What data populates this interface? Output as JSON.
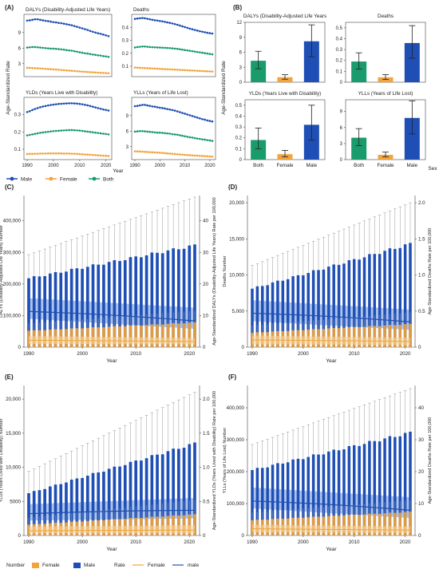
{
  "chart_data": [
    {
      "panel": "(A)",
      "type": "line",
      "title": "DALYs (Disability-Adjusted Life Years)",
      "x": [
        1990,
        1991,
        1992,
        1993,
        1994,
        1995,
        1996,
        1997,
        1998,
        1999,
        2000,
        2001,
        2002,
        2003,
        2004,
        2005,
        2006,
        2007,
        2008,
        2009,
        2010,
        2011,
        2012,
        2013,
        2014,
        2015,
        2016,
        2017,
        2018,
        2019,
        2020,
        2021
      ],
      "yticks": [
        "3",
        "6",
        "9"
      ],
      "ylim": [
        0.5,
        12.5
      ],
      "series": [
        {
          "name": "Male",
          "color": "#1f4fb5",
          "values": [
            11.3,
            11.35,
            11.45,
            11.55,
            11.55,
            11.45,
            11.35,
            11.25,
            11.2,
            11.1,
            11.0,
            10.95,
            10.85,
            10.8,
            10.7,
            10.6,
            10.5,
            10.4,
            10.25,
            10.1,
            9.95,
            9.8,
            9.65,
            9.5,
            9.3,
            9.15,
            9.0,
            8.85,
            8.75,
            8.6,
            8.45,
            8.3
          ]
        },
        {
          "name": "Female",
          "color": "#f2a33a",
          "values": [
            2.2,
            2.18,
            2.15,
            2.12,
            2.1,
            2.07,
            2.04,
            2.0,
            1.97,
            1.93,
            1.9,
            1.86,
            1.82,
            1.78,
            1.74,
            1.7,
            1.66,
            1.62,
            1.58,
            1.54,
            1.5,
            1.46,
            1.43,
            1.4,
            1.36,
            1.33,
            1.3,
            1.27,
            1.24,
            1.21,
            1.18,
            1.15
          ]
        },
        {
          "name": "Both",
          "color": "#1a9b6c",
          "values": [
            6.1,
            6.15,
            6.2,
            6.2,
            6.15,
            6.1,
            6.05,
            6.0,
            5.95,
            5.9,
            5.9,
            5.85,
            5.8,
            5.75,
            5.7,
            5.6,
            5.55,
            5.5,
            5.4,
            5.3,
            5.2,
            5.1,
            5.0,
            4.95,
            4.85,
            4.75,
            4.7,
            4.6,
            4.55,
            4.45,
            4.4,
            4.3
          ]
        }
      ]
    },
    {
      "panel": "",
      "type": "line",
      "title": "Deaths",
      "x": [
        1990,
        1991,
        1992,
        1993,
        1994,
        1995,
        1996,
        1997,
        1998,
        1999,
        2000,
        2001,
        2002,
        2003,
        2004,
        2005,
        2006,
        2007,
        2008,
        2009,
        2010,
        2011,
        2012,
        2013,
        2014,
        2015,
        2016,
        2017,
        2018,
        2019,
        2020,
        2021
      ],
      "yticks": [
        "0.1",
        "0.2",
        "0.3",
        "0.4"
      ],
      "ylim": [
        0.02,
        0.5
      ],
      "series": [
        {
          "name": "Male",
          "color": "#1f4fb5",
          "values": [
            0.465,
            0.468,
            0.47,
            0.472,
            0.47,
            0.466,
            0.462,
            0.458,
            0.455,
            0.452,
            0.449,
            0.446,
            0.442,
            0.438,
            0.434,
            0.43,
            0.425,
            0.42,
            0.414,
            0.408,
            0.402,
            0.396,
            0.39,
            0.385,
            0.38,
            0.375,
            0.37,
            0.366,
            0.362,
            0.358,
            0.355,
            0.352
          ]
        },
        {
          "name": "Female",
          "color": "#f2a33a",
          "values": [
            0.09,
            0.089,
            0.088,
            0.087,
            0.086,
            0.085,
            0.084,
            0.083,
            0.082,
            0.081,
            0.08,
            0.079,
            0.078,
            0.077,
            0.076,
            0.075,
            0.074,
            0.073,
            0.072,
            0.071,
            0.07,
            0.069,
            0.068,
            0.067,
            0.066,
            0.065,
            0.064,
            0.063,
            0.062,
            0.061,
            0.06,
            0.059
          ]
        },
        {
          "name": "Both",
          "color": "#1a9b6c",
          "values": [
            0.245,
            0.248,
            0.25,
            0.252,
            0.252,
            0.25,
            0.248,
            0.247,
            0.246,
            0.245,
            0.244,
            0.243,
            0.242,
            0.241,
            0.24,
            0.238,
            0.236,
            0.234,
            0.231,
            0.228,
            0.225,
            0.222,
            0.219,
            0.216,
            0.213,
            0.21,
            0.207,
            0.204,
            0.201,
            0.198,
            0.195,
            0.192
          ]
        }
      ]
    },
    {
      "panel": "",
      "type": "line",
      "title": "YLDs (Years Live with Disability)",
      "x": [
        1990,
        1991,
        1992,
        1993,
        1994,
        1995,
        1996,
        1997,
        1998,
        1999,
        2000,
        2001,
        2002,
        2003,
        2004,
        2005,
        2006,
        2007,
        2008,
        2009,
        2010,
        2011,
        2012,
        2013,
        2014,
        2015,
        2016,
        2017,
        2018,
        2019,
        2020,
        2021
      ],
      "yticks": [
        "0.1",
        "0.2",
        "0.3"
      ],
      "ylim": [
        0.04,
        0.4
      ],
      "series": [
        {
          "name": "Male",
          "color": "#1f4fb5",
          "values": [
            0.315,
            0.32,
            0.327,
            0.333,
            0.338,
            0.343,
            0.347,
            0.35,
            0.353,
            0.356,
            0.358,
            0.36,
            0.362,
            0.363,
            0.364,
            0.365,
            0.366,
            0.366,
            0.365,
            0.364,
            0.362,
            0.36,
            0.357,
            0.354,
            0.35,
            0.346,
            0.342,
            0.338,
            0.334,
            0.33,
            0.327,
            0.324
          ]
        },
        {
          "name": "Female",
          "color": "#f2a33a",
          "values": [
            0.072,
            0.073,
            0.073,
            0.074,
            0.074,
            0.075,
            0.075,
            0.075,
            0.076,
            0.076,
            0.076,
            0.076,
            0.076,
            0.076,
            0.075,
            0.075,
            0.075,
            0.074,
            0.074,
            0.073,
            0.072,
            0.071,
            0.07,
            0.069,
            0.068,
            0.067,
            0.066,
            0.065,
            0.064,
            0.063,
            0.062,
            0.061
          ]
        },
        {
          "name": "Both",
          "color": "#1a9b6c",
          "values": [
            0.18,
            0.183,
            0.186,
            0.189,
            0.192,
            0.195,
            0.197,
            0.199,
            0.201,
            0.203,
            0.205,
            0.206,
            0.207,
            0.208,
            0.209,
            0.21,
            0.211,
            0.211,
            0.21,
            0.209,
            0.208,
            0.206,
            0.204,
            0.202,
            0.2,
            0.198,
            0.196,
            0.194,
            0.192,
            0.19,
            0.188,
            0.186
          ]
        }
      ]
    },
    {
      "panel": "",
      "type": "line",
      "title": "YLLs (Years of Life Lost)",
      "x": [
        1990,
        1991,
        1992,
        1993,
        1994,
        1995,
        1996,
        1997,
        1998,
        1999,
        2000,
        2001,
        2002,
        2003,
        2004,
        2005,
        2006,
        2007,
        2008,
        2009,
        2010,
        2011,
        2012,
        2013,
        2014,
        2015,
        2016,
        2017,
        2018,
        2019,
        2020,
        2021
      ],
      "yticks": [
        "3",
        "6",
        "9"
      ],
      "ylim": [
        0.5,
        12.5
      ],
      "series": [
        {
          "name": "Male",
          "color": "#1f4fb5",
          "values": [
            10.8,
            10.85,
            10.95,
            11.05,
            11.05,
            10.95,
            10.85,
            10.75,
            10.7,
            10.6,
            10.5,
            10.45,
            10.35,
            10.25,
            10.15,
            10.05,
            9.95,
            9.8,
            9.65,
            9.5,
            9.35,
            9.2,
            9.05,
            8.9,
            8.75,
            8.6,
            8.45,
            8.3,
            8.2,
            8.05,
            7.95,
            7.85
          ]
        },
        {
          "name": "Female",
          "color": "#f2a33a",
          "values": [
            2.1,
            2.08,
            2.06,
            2.03,
            2.0,
            1.97,
            1.94,
            1.91,
            1.88,
            1.85,
            1.82,
            1.78,
            1.74,
            1.7,
            1.66,
            1.62,
            1.58,
            1.54,
            1.5,
            1.46,
            1.42,
            1.38,
            1.35,
            1.32,
            1.29,
            1.26,
            1.23,
            1.2,
            1.17,
            1.14,
            1.11,
            1.08
          ]
        },
        {
          "name": "Both",
          "color": "#1a9b6c",
          "values": [
            5.9,
            5.95,
            6.0,
            6.0,
            5.95,
            5.9,
            5.85,
            5.8,
            5.75,
            5.7,
            5.7,
            5.65,
            5.6,
            5.55,
            5.5,
            5.4,
            5.35,
            5.3,
            5.2,
            5.1,
            5.0,
            4.9,
            4.8,
            4.75,
            4.65,
            4.55,
            4.5,
            4.4,
            4.35,
            4.25,
            4.2,
            4.1
          ]
        }
      ]
    },
    {
      "panel": "(B)",
      "type": "bar",
      "title": "DALYs (Disability-Adjusted Life Years",
      "categories": [
        "Both",
        "Female",
        "Male"
      ],
      "colors": [
        "#1a9b6c",
        "#f2a33a",
        "#1f4fb5"
      ],
      "values": [
        4.3,
        1.0,
        8.2
      ],
      "lower": [
        2.7,
        0.6,
        5.1
      ],
      "upper": [
        6.2,
        1.5,
        11.5
      ],
      "yticks": [
        "0",
        "3",
        "6",
        "9",
        "12"
      ],
      "ylim": [
        0,
        12
      ]
    },
    {
      "panel": "",
      "type": "bar",
      "title": "Deaths",
      "categories": [
        "Both",
        "Female",
        "Male"
      ],
      "colors": [
        "#1a9b6c",
        "#f2a33a",
        "#1f4fb5"
      ],
      "values": [
        0.19,
        0.045,
        0.36
      ],
      "lower": [
        0.12,
        0.025,
        0.22
      ],
      "upper": [
        0.27,
        0.07,
        0.52
      ],
      "yticks": [
        "0",
        "0.1",
        "0.2",
        "0.3",
        "0.4",
        "0.5"
      ],
      "ylim": [
        0,
        0.55
      ]
    },
    {
      "panel": "",
      "type": "bar",
      "title": "YLDs (Years Live with Disability)",
      "categories": [
        "Both",
        "Female",
        "Male"
      ],
      "colors": [
        "#1a9b6c",
        "#f2a33a",
        "#1f4fb5"
      ],
      "values": [
        0.18,
        0.05,
        0.32
      ],
      "lower": [
        0.1,
        0.025,
        0.18
      ],
      "upper": [
        0.29,
        0.085,
        0.5
      ],
      "yticks": [
        "0",
        "0.1",
        "0.2",
        "0.3",
        "0.4",
        "0.5"
      ],
      "ylim": [
        0,
        0.55
      ]
    },
    {
      "panel": "",
      "type": "bar",
      "title": "YLLs (Years of Life Lost)",
      "categories": [
        "Both",
        "Female",
        "Male"
      ],
      "colors": [
        "#1a9b6c",
        "#f2a33a",
        "#1f4fb5"
      ],
      "values": [
        4.1,
        0.9,
        7.8
      ],
      "lower": [
        2.6,
        0.5,
        4.8
      ],
      "upper": [
        5.8,
        1.4,
        11.0
      ],
      "yticks": [
        "0",
        "3",
        "6",
        "9"
      ],
      "ylim": [
        0,
        11.2
      ]
    },
    {
      "panel": "(C)",
      "type": "bar+line",
      "xlabel": "Year",
      "ylabel_left": "DALYs (Disability-Adjusted Life Years) Number",
      "ylabel_right": "Age-Standardized DALYs (Disability-Adjusted Life Years) Rate per 100,000",
      "x_first": 1990,
      "x_last": 2021,
      "xticks": [
        "1990",
        "2000",
        "2010",
        "2020"
      ],
      "left_ticks": [
        "0",
        "100,000",
        "200,000",
        "300,000",
        "400,000"
      ],
      "left_max": 480000,
      "right_ticks": [
        "0",
        "10",
        "20",
        "30",
        "40"
      ],
      "right_max": 48,
      "male_number": [
        218000,
        322000
      ],
      "male_upper": [
        293000,
        475000
      ],
      "female_number": [
        52000,
        78000
      ],
      "female_upper": [
        75000,
        115000
      ],
      "male_rate": [
        11.3,
        8.3
      ],
      "male_rate_band": [
        [
          9.0,
          15.5
        ],
        [
          5.8,
          12.5
        ]
      ],
      "female_rate": [
        2.2,
        1.8
      ],
      "female_rate_band": [
        [
          1.0,
          3.5
        ],
        [
          0.9,
          2.9
        ]
      ]
    },
    {
      "panel": "(D)",
      "type": "bar+line",
      "xlabel": "Year",
      "ylabel_left": "Deaths Number",
      "ylabel_right": "Age-Standardized Deaths Rate per 100,000",
      "x_first": 1990,
      "x_last": 2021,
      "xticks": [
        "1990",
        "2000",
        "2010",
        "2020"
      ],
      "left_ticks": [
        "0",
        "5,000",
        "10,000",
        "15,000",
        "20,000"
      ],
      "left_max": 21000,
      "right_ticks": [
        "0",
        "0.5",
        "1.0",
        "1.5",
        "2.0"
      ],
      "right_max": 2.1,
      "male_number": [
        8100,
        14300
      ],
      "male_upper": [
        11300,
        20000
      ],
      "female_number": [
        2000,
        3200
      ],
      "female_upper": [
        3000,
        4800
      ],
      "male_rate": [
        0.47,
        0.35
      ],
      "male_rate_band": [
        [
          0.36,
          0.65
        ],
        [
          0.24,
          0.52
        ]
      ],
      "female_rate": [
        0.1,
        0.08
      ],
      "female_rate_band": [
        [
          0.04,
          0.16
        ],
        [
          0.03,
          0.13
        ]
      ]
    },
    {
      "panel": "(E)",
      "type": "bar+line",
      "xlabel": "Year",
      "ylabel_left": "YLDs (Years Lived with Disability) Number",
      "ylabel_right": "Age-Standardized YLDs (Years Lived with Disability) Rate per 100,000",
      "x_first": 1990,
      "x_last": 2021,
      "xticks": [
        "1990",
        "2000",
        "2010",
        "2020"
      ],
      "left_ticks": [
        "0",
        "5000",
        "10,000",
        "15,000",
        "20,000"
      ],
      "left_max": 22000,
      "right_ticks": [
        "0",
        "0.5",
        "1.0",
        "1.5",
        "2.0"
      ],
      "right_max": 2.2,
      "male_number": [
        6200,
        13500
      ],
      "male_upper": [
        9400,
        21000
      ],
      "female_number": [
        1600,
        3100
      ],
      "female_upper": [
        2600,
        5200
      ],
      "male_rate": [
        0.32,
        0.37
      ],
      "male_rate_band": [
        [
          0.22,
          0.46
        ],
        [
          0.25,
          0.55
        ]
      ],
      "female_rate": [
        0.07,
        0.08
      ],
      "female_rate_band": [
        [
          0.03,
          0.13
        ],
        [
          0.03,
          0.15
        ]
      ]
    },
    {
      "panel": "(F)",
      "type": "bar+line",
      "xlabel": "Year",
      "ylabel_left": "YLLs (Years of Life Lost) Number",
      "ylabel_right": "Age-Standardized Deaths Rate per 100,000",
      "x_first": 1990,
      "x_last": 2021,
      "xticks": [
        "1990",
        "2000",
        "2010",
        "2020"
      ],
      "left_ticks": [
        "0",
        "100,000",
        "200,000",
        "300,000",
        "400,000"
      ],
      "left_max": 470000,
      "right_ticks": [
        "0",
        "10",
        "20",
        "30",
        "40"
      ],
      "right_max": 47,
      "male_number": [
        205000,
        322000
      ],
      "male_upper": [
        285000,
        460000
      ],
      "female_number": [
        48000,
        74000
      ],
      "female_upper": [
        72000,
        110000
      ],
      "male_rate": [
        10.8,
        7.9
      ],
      "male_rate_band": [
        [
          8.5,
          15.0
        ],
        [
          5.5,
          12.0
        ]
      ],
      "female_rate": [
        2.1,
        1.7
      ],
      "female_rate_band": [
        [
          1.0,
          3.4
        ],
        [
          0.8,
          2.8
        ]
      ]
    }
  ],
  "labels": {
    "a_ylabel": "Age-Standardized Rate",
    "a_xlabel": "Year",
    "a_legend": [
      "Male",
      "Female",
      "Both"
    ],
    "b_ylabel": "Age-Standardized Rate",
    "b_xlabel": "Sex",
    "bottom_number": "Number",
    "bottom_rate": "Rate",
    "bottom_female": "Female",
    "bottom_male": "Male",
    "bottom_rate_female": "Female",
    "bottom_rate_male": "male"
  },
  "colors": {
    "male": "#1f4fb5",
    "female": "#f2a33a",
    "both": "#1a9b6c",
    "male_band": "#8fb0e8",
    "female_band": "#f8d49a"
  }
}
